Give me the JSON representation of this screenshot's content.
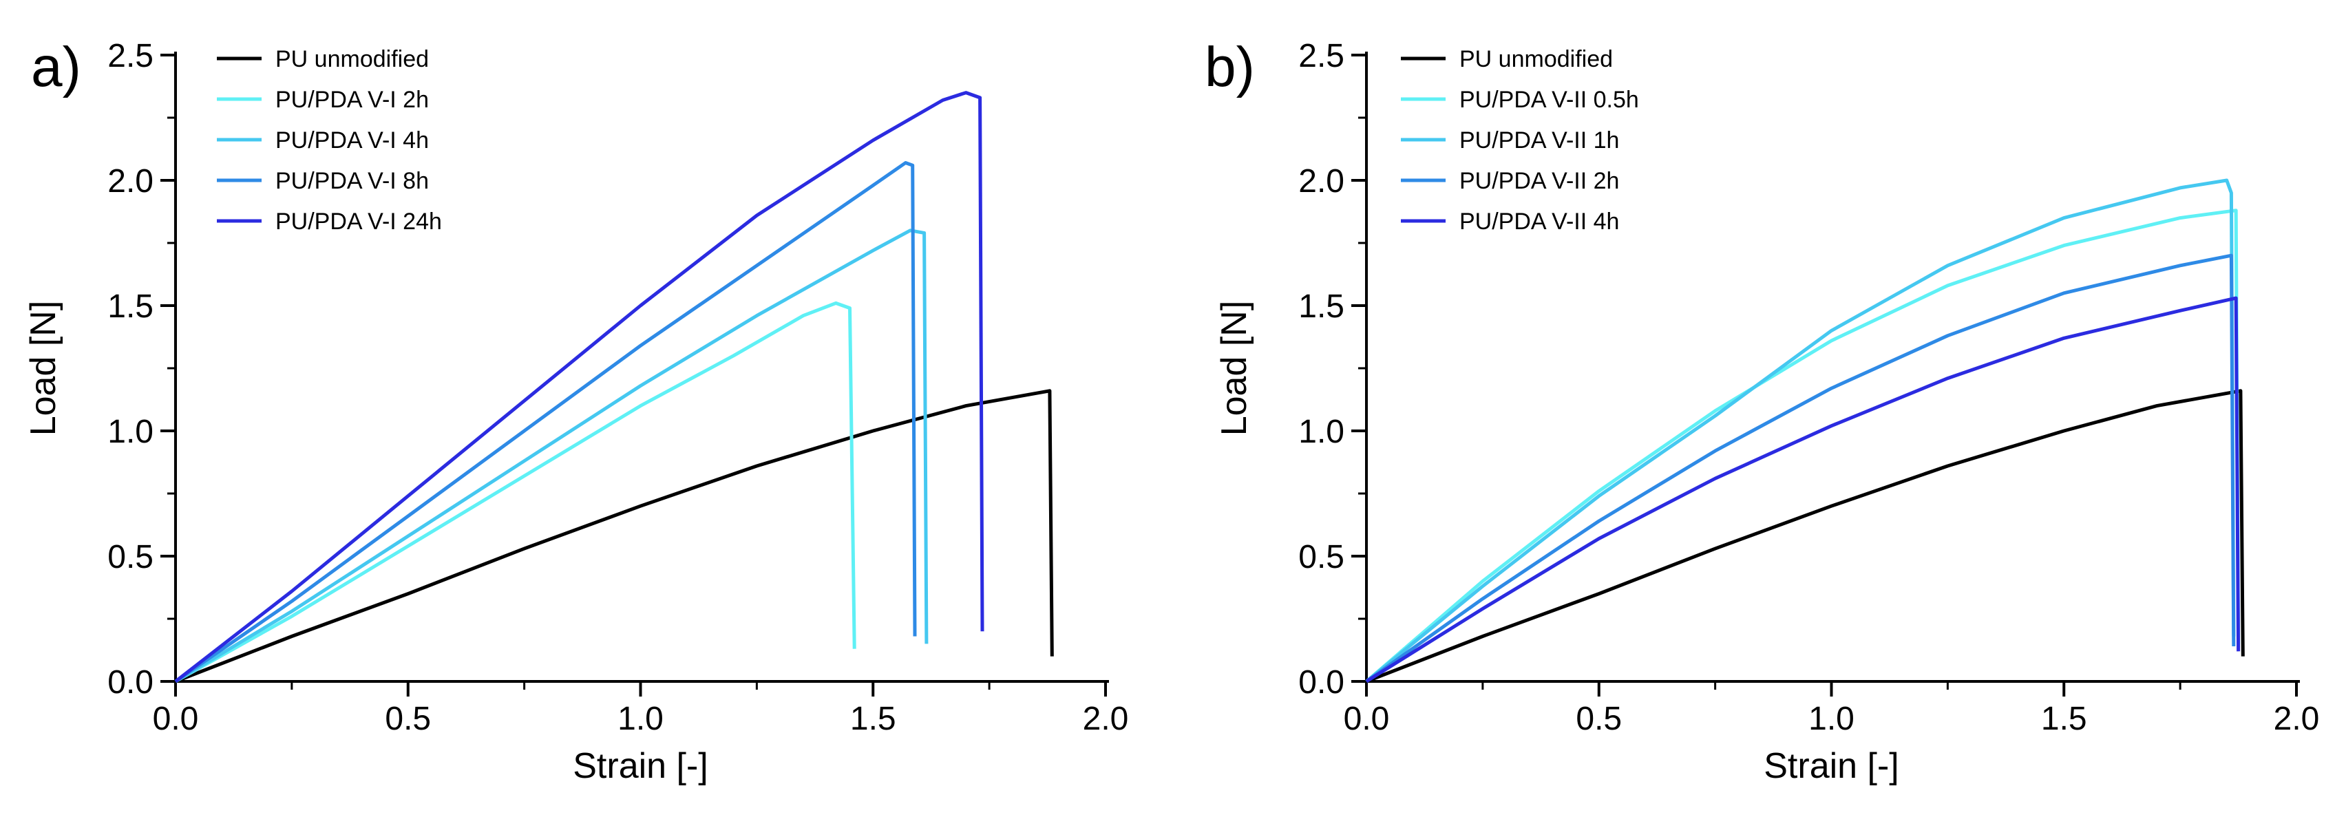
{
  "chart_data": [
    {
      "panel_label": "a)",
      "type": "line",
      "xlabel": "Strain [-]",
      "ylabel": "Load [N]",
      "xlim": [
        0,
        2.0
      ],
      "ylim": [
        0,
        2.5
      ],
      "x_ticks": [
        "0.0",
        "0.5",
        "1.0",
        "1.5",
        "2.0"
      ],
      "y_ticks": [
        "0.0",
        "0.5",
        "1.0",
        "1.5",
        "2.0",
        "2.5"
      ],
      "legend_position": "top-left",
      "series": [
        {
          "name": "PU unmodified",
          "color": "#000000",
          "points": [
            [
              0,
              0
            ],
            [
              0.25,
              0.18
            ],
            [
              0.5,
              0.35
            ],
            [
              0.75,
              0.53
            ],
            [
              1.0,
              0.7
            ],
            [
              1.25,
              0.86
            ],
            [
              1.5,
              1.0
            ],
            [
              1.7,
              1.1
            ],
            [
              1.85,
              1.15
            ],
            [
              1.88,
              1.16
            ],
            [
              1.885,
              0.1
            ]
          ]
        },
        {
          "name": "PU/PDA V-I 2h",
          "color": "#5ff0f5",
          "points": [
            [
              0,
              0
            ],
            [
              0.25,
              0.26
            ],
            [
              0.5,
              0.54
            ],
            [
              0.75,
              0.82
            ],
            [
              1.0,
              1.1
            ],
            [
              1.2,
              1.3
            ],
            [
              1.35,
              1.46
            ],
            [
              1.42,
              1.51
            ],
            [
              1.45,
              1.49
            ],
            [
              1.46,
              0.13
            ]
          ]
        },
        {
          "name": "PU/PDA V-I 4h",
          "color": "#45c8f0",
          "points": [
            [
              0,
              0
            ],
            [
              0.25,
              0.28
            ],
            [
              0.5,
              0.58
            ],
            [
              0.75,
              0.88
            ],
            [
              1.0,
              1.18
            ],
            [
              1.25,
              1.46
            ],
            [
              1.5,
              1.72
            ],
            [
              1.58,
              1.8
            ],
            [
              1.61,
              1.79
            ],
            [
              1.615,
              0.15
            ]
          ]
        },
        {
          "name": "PU/PDA V-I 8h",
          "color": "#2e8ae6",
          "points": [
            [
              0,
              0
            ],
            [
              0.25,
              0.32
            ],
            [
              0.5,
              0.66
            ],
            [
              0.75,
              1.0
            ],
            [
              1.0,
              1.34
            ],
            [
              1.25,
              1.66
            ],
            [
              1.5,
              1.98
            ],
            [
              1.57,
              2.07
            ],
            [
              1.585,
              2.06
            ],
            [
              1.59,
              0.18
            ]
          ]
        },
        {
          "name": "PU/PDA V-I 24h",
          "color": "#2b2be0",
          "points": [
            [
              0,
              0
            ],
            [
              0.25,
              0.36
            ],
            [
              0.5,
              0.74
            ],
            [
              0.75,
              1.12
            ],
            [
              1.0,
              1.5
            ],
            [
              1.25,
              1.86
            ],
            [
              1.5,
              2.16
            ],
            [
              1.65,
              2.32
            ],
            [
              1.7,
              2.35
            ],
            [
              1.73,
              2.33
            ],
            [
              1.735,
              0.2
            ]
          ]
        }
      ]
    },
    {
      "panel_label": "b)",
      "type": "line",
      "xlabel": "Strain [-]",
      "ylabel": "Load [N]",
      "xlim": [
        0,
        2.0
      ],
      "ylim": [
        0,
        2.5
      ],
      "x_ticks": [
        "0.0",
        "0.5",
        "1.0",
        "1.5",
        "2.0"
      ],
      "y_ticks": [
        "0.0",
        "0.5",
        "1.0",
        "1.5",
        "2.0",
        "2.5"
      ],
      "legend_position": "top-left",
      "series": [
        {
          "name": "PU unmodified",
          "color": "#000000",
          "points": [
            [
              0,
              0
            ],
            [
              0.25,
              0.18
            ],
            [
              0.5,
              0.35
            ],
            [
              0.75,
              0.53
            ],
            [
              1.0,
              0.7
            ],
            [
              1.25,
              0.86
            ],
            [
              1.5,
              1.0
            ],
            [
              1.7,
              1.1
            ],
            [
              1.85,
              1.15
            ],
            [
              1.88,
              1.16
            ],
            [
              1.885,
              0.1
            ]
          ]
        },
        {
          "name": "PU/PDA V-II 0.5h",
          "color": "#5ff0f5",
          "points": [
            [
              0,
              0
            ],
            [
              0.25,
              0.4
            ],
            [
              0.5,
              0.76
            ],
            [
              0.75,
              1.08
            ],
            [
              1.0,
              1.36
            ],
            [
              1.25,
              1.58
            ],
            [
              1.5,
              1.74
            ],
            [
              1.75,
              1.85
            ],
            [
              1.87,
              1.88
            ],
            [
              1.875,
              0.15
            ]
          ]
        },
        {
          "name": "PU/PDA V-II 1h",
          "color": "#45c8f0",
          "points": [
            [
              0,
              0
            ],
            [
              0.25,
              0.38
            ],
            [
              0.5,
              0.74
            ],
            [
              0.75,
              1.06
            ],
            [
              1.0,
              1.4
            ],
            [
              1.25,
              1.66
            ],
            [
              1.5,
              1.85
            ],
            [
              1.75,
              1.97
            ],
            [
              1.85,
              2.0
            ],
            [
              1.86,
              1.95
            ],
            [
              1.865,
              0.18
            ]
          ]
        },
        {
          "name": "PU/PDA V-II 2h",
          "color": "#2e8ae6",
          "points": [
            [
              0,
              0
            ],
            [
              0.25,
              0.33
            ],
            [
              0.5,
              0.64
            ],
            [
              0.75,
              0.92
            ],
            [
              1.0,
              1.17
            ],
            [
              1.25,
              1.38
            ],
            [
              1.5,
              1.55
            ],
            [
              1.75,
              1.66
            ],
            [
              1.86,
              1.7
            ],
            [
              1.865,
              0.14
            ]
          ]
        },
        {
          "name": "PU/PDA V-II 4h",
          "color": "#2b2be0",
          "points": [
            [
              0,
              0
            ],
            [
              0.25,
              0.29
            ],
            [
              0.5,
              0.57
            ],
            [
              0.75,
              0.81
            ],
            [
              1.0,
              1.02
            ],
            [
              1.25,
              1.21
            ],
            [
              1.5,
              1.37
            ],
            [
              1.75,
              1.48
            ],
            [
              1.87,
              1.53
            ],
            [
              1.875,
              0.12
            ]
          ]
        }
      ]
    }
  ]
}
